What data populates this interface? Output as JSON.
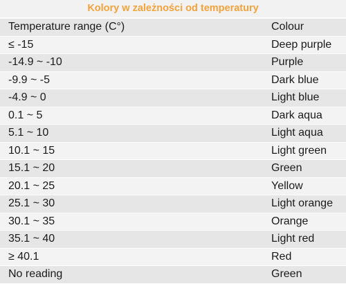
{
  "table": {
    "title": "Kolory w zależności od temperatury",
    "headers": {
      "range": "Temperature range (C°)",
      "colour": "Colour"
    },
    "rows": [
      {
        "range": "≤ -15",
        "colour": "Deep purple"
      },
      {
        "range": "-14.9 ~ -10",
        "colour": "Purple"
      },
      {
        "range": "-9.9 ~ -5",
        "colour": "Dark blue"
      },
      {
        "range": "-4.9 ~ 0",
        "colour": "Light blue"
      },
      {
        "range": "0.1 ~ 5",
        "colour": "Dark aqua"
      },
      {
        "range": "5.1 ~ 10",
        "colour": "Light aqua"
      },
      {
        "range": "10.1 ~ 15",
        "colour": "Light green"
      },
      {
        "range": "15.1 ~ 20",
        "colour": "Green"
      },
      {
        "range": "20.1 ~ 25",
        "colour": "Yellow"
      },
      {
        "range": "25.1 ~ 30",
        "colour": "Light orange"
      },
      {
        "range": "30.1 ~ 35",
        "colour": "Orange"
      },
      {
        "range": "35.1 ~ 40",
        "colour": "Light red"
      },
      {
        "range": "≥ 40.1",
        "colour": "Red"
      },
      {
        "range": "No reading",
        "colour": "Green"
      }
    ]
  },
  "colors": {
    "title_text": "#f5a23a",
    "row_dark": "#e6e6e6",
    "row_light": "#f3f3f3"
  }
}
